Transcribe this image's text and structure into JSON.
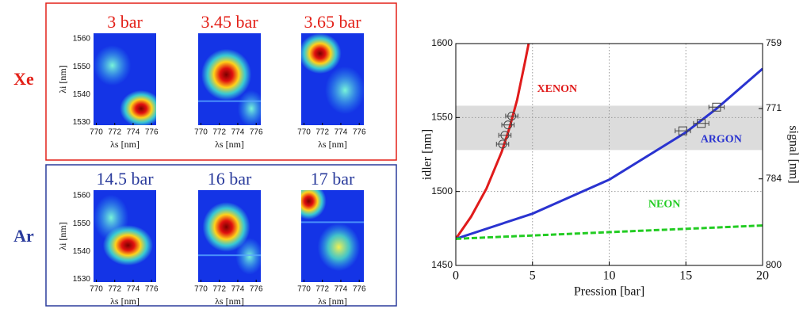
{
  "chart_data": [
    {
      "type": "heatmap-grid",
      "rows": [
        {
          "label": "Xe",
          "color": "#e32119",
          "panels": [
            "3 bar",
            "3.45 bar",
            "3.65 bar"
          ]
        },
        {
          "label": "Ar",
          "color": "#2b3c9c",
          "panels": [
            "14.5 bar",
            "16 bar",
            "17 bar"
          ]
        }
      ],
      "ylabel": "λi [nm]",
      "xlabel": "λs [nm]",
      "xlim": [
        769.7,
        776.5
      ],
      "xticks": [
        770,
        772,
        774,
        776
      ],
      "ylim": [
        1529,
        1562
      ],
      "yticks": [
        1560,
        1550,
        1540,
        1530
      ]
    },
    {
      "type": "line",
      "xlabel": "Pression [bar]",
      "ylabel": "idler [nm]",
      "y2label": "signal [nm]",
      "xlim": [
        0,
        20
      ],
      "xticks": [
        0,
        5,
        10,
        15,
        20
      ],
      "ylim": [
        1450,
        1600
      ],
      "yticks": [
        1450,
        1500,
        1550,
        1600
      ],
      "y2lim": [
        800,
        759
      ],
      "y2ticks": [
        759,
        771,
        784,
        800
      ],
      "grid": true,
      "band": [
        1528,
        1558
      ],
      "band_color": "#dcdcdc",
      "series": [
        {
          "name": "XENON",
          "color": "#e01b1b",
          "x": [
            0,
            1,
            2,
            3,
            3.5,
            4,
            4.5,
            4.75
          ],
          "values": [
            1468,
            1483,
            1502,
            1527,
            1543,
            1562,
            1587,
            1600
          ]
        },
        {
          "name": "ARGON",
          "color": "#2a33d0",
          "x": [
            0,
            5,
            10,
            15,
            17,
            20
          ],
          "values": [
            1468,
            1485,
            1508,
            1540,
            1556,
            1583
          ]
        },
        {
          "name": "NEON",
          "color": "#22cc22",
          "dashed": true,
          "x": [
            0,
            20
          ],
          "values": [
            1468,
            1477
          ]
        }
      ],
      "measurements": [
        {
          "marker": "circle",
          "color": "#444",
          "x": [
            3.05,
            3.2,
            3.4,
            3.65
          ],
          "values": [
            1532,
            1538,
            1545,
            1551
          ],
          "xerr": [
            0.4,
            0.4,
            0.4,
            0.4
          ]
        },
        {
          "marker": "square",
          "color": "#444",
          "x": [
            14.8,
            16,
            17
          ],
          "values": [
            1541,
            1546,
            1557
          ],
          "xerr": [
            0.5,
            0.5,
            0.5
          ]
        }
      ]
    }
  ]
}
